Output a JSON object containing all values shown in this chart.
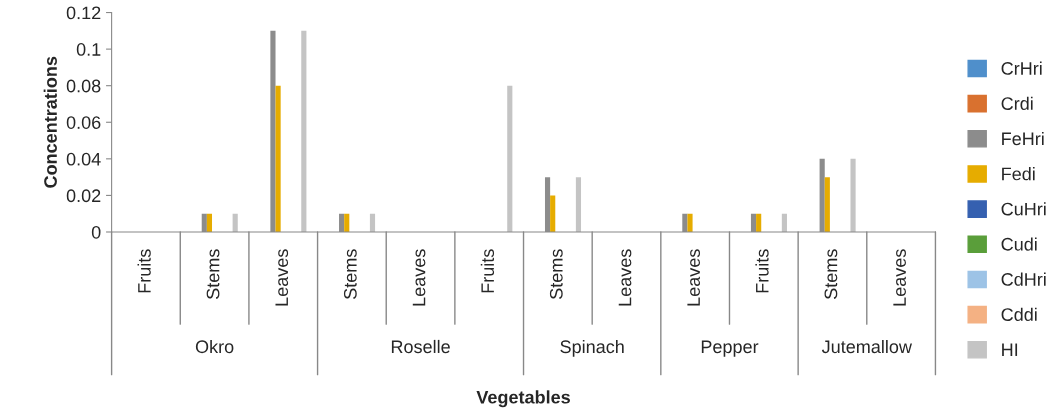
{
  "chart_data": {
    "type": "bar",
    "xlabel": "Vegetables",
    "ylabel": "Concentrations",
    "categories": [
      "Fruits",
      "Stems",
      "Leaves",
      "Stems",
      "Leaves",
      "Fruits",
      "Stems",
      "Leaves",
      "Leaves",
      "Fruits",
      "Stems",
      "Leaves"
    ],
    "annotations": [
      "Okro",
      "Roselle",
      "Spinach",
      "Pepper",
      "Jutemallow"
    ],
    "series": [
      {
        "name": "CrHri",
        "color": "#4f8fcb",
        "values": [
          0,
          0,
          0,
          0,
          0,
          0,
          0,
          0,
          0,
          0,
          0,
          0
        ]
      },
      {
        "name": "Crdi",
        "color": "#d9712f",
        "values": [
          0,
          0,
          0,
          0,
          0,
          0,
          0,
          0,
          0,
          0,
          0,
          0
        ]
      },
      {
        "name": "FeHri",
        "color": "#8c8c8c",
        "values": [
          0,
          0.01,
          0.11,
          0.01,
          0,
          0,
          0.03,
          0,
          0.01,
          0.01,
          0.04,
          0
        ]
      },
      {
        "name": "Fedi",
        "color": "#e6ac00",
        "values": [
          0,
          0.01,
          0.08,
          0.01,
          0,
          0,
          0.02,
          0,
          0.01,
          0.01,
          0.03,
          0
        ]
      },
      {
        "name": "CuHri",
        "color": "#3560b0",
        "values": [
          0,
          0,
          0,
          0,
          0,
          0,
          0,
          0,
          0,
          0,
          0,
          0
        ]
      },
      {
        "name": "Cudi",
        "color": "#5a9e3a",
        "values": [
          0,
          0,
          0,
          0,
          0,
          0,
          0,
          0,
          0,
          0,
          0,
          0
        ]
      },
      {
        "name": "CdHri",
        "color": "#9dc3e6",
        "values": [
          0,
          0,
          0,
          0,
          0,
          0,
          0,
          0,
          0,
          0,
          0,
          0
        ]
      },
      {
        "name": "Cddi",
        "color": "#f4b183",
        "values": [
          0,
          0,
          0,
          0,
          0,
          0,
          0,
          0,
          0,
          0,
          0,
          0
        ]
      },
      {
        "name": "HI",
        "color": "#c4c4c4",
        "values": [
          0,
          0.01,
          0.11,
          0.01,
          0,
          0.08,
          0.03,
          0,
          0,
          0.01,
          0.04,
          0
        ]
      }
    ],
    "ylim": [
      0,
      0.12
    ],
    "yticks": [
      {
        "value": 0,
        "label": "0"
      },
      0.02,
      0.04,
      0.06,
      0.08,
      0.1,
      0.12
    ],
    "grid": false,
    "legend": "right"
  }
}
